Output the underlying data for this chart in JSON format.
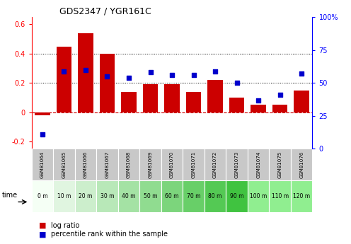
{
  "title": "GDS2347 / YGR161C",
  "samples": [
    "GSM81064",
    "GSM81065",
    "GSM81066",
    "GSM81067",
    "GSM81068",
    "GSM81069",
    "GSM81070",
    "GSM81071",
    "GSM81072",
    "GSM81073",
    "GSM81074",
    "GSM81075",
    "GSM81076"
  ],
  "time_labels": [
    "0 m",
    "10 m",
    "20 m",
    "30 m",
    "40 m",
    "50 m",
    "60 m",
    "70 m",
    "80 m",
    "90 m",
    "100 m",
    "110 m",
    "120 m"
  ],
  "log_ratio": [
    -0.02,
    0.45,
    0.54,
    0.4,
    0.14,
    0.19,
    0.19,
    0.14,
    0.22,
    0.1,
    0.05,
    0.05,
    0.15
  ],
  "percentile_pct": [
    11,
    59,
    60,
    55,
    54,
    58,
    56,
    56,
    59,
    50,
    37,
    41,
    57
  ],
  "bar_color": "#cc0000",
  "dot_color": "#0000cc",
  "ylim_left": [
    -0.25,
    0.65
  ],
  "yticks_left": [
    -0.2,
    0.0,
    0.2,
    0.4,
    0.6
  ],
  "hlines": [
    0.2,
    0.4
  ],
  "gsm_row_color": "#c8c8c8",
  "time_colors": [
    "#f5fff5",
    "#e0f5e0",
    "#cceecc",
    "#b8e8b8",
    "#a4e2a4",
    "#90dc90",
    "#7cd57c",
    "#68cf68",
    "#54c954",
    "#40c340",
    "#90ee90",
    "#90ee90",
    "#90ee90"
  ],
  "legend_log_ratio": "log ratio",
  "legend_percentile": "percentile rank within the sample"
}
